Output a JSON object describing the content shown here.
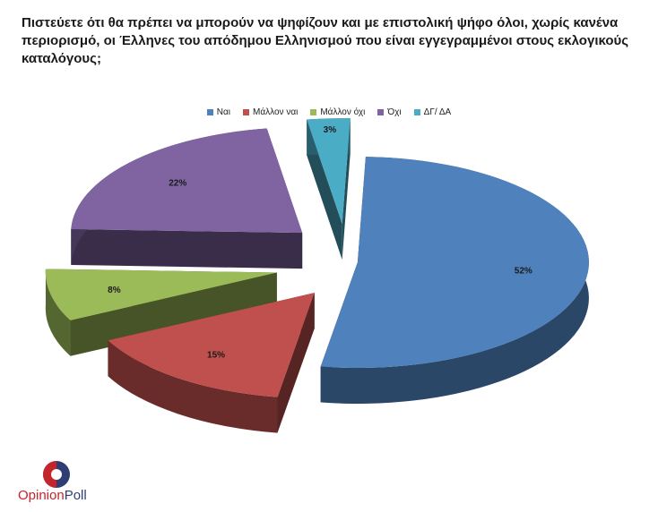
{
  "chart_data": {
    "type": "pie",
    "title": "Πιστεύετε ότι θα πρέπει να μπορούν να ψηφίζουν και με επιστολική ψήφο όλοι, χωρίς κανένα περιορισμό, οι Έλληνες του απόδημου Ελληνισμού που είναι εγγεγραμμένοι στους εκλογικούς καταλόγους;",
    "categories": [
      "Ναι",
      "Μάλλον ναι",
      "Μάλλον όχι",
      "Όχι",
      "ΔΓ/ ΔΑ"
    ],
    "values": [
      52,
      15,
      8,
      22,
      3
    ],
    "value_labels": [
      "52%",
      "15%",
      "8%",
      "22%",
      "3%"
    ],
    "colors": [
      "#4f81bd",
      "#c0504d",
      "#9bbb59",
      "#8064a2",
      "#4bacc6"
    ],
    "legend_position": "top",
    "style": "3d-exploded"
  },
  "logo": {
    "part1": "Opinion",
    "part2": "Poll"
  }
}
